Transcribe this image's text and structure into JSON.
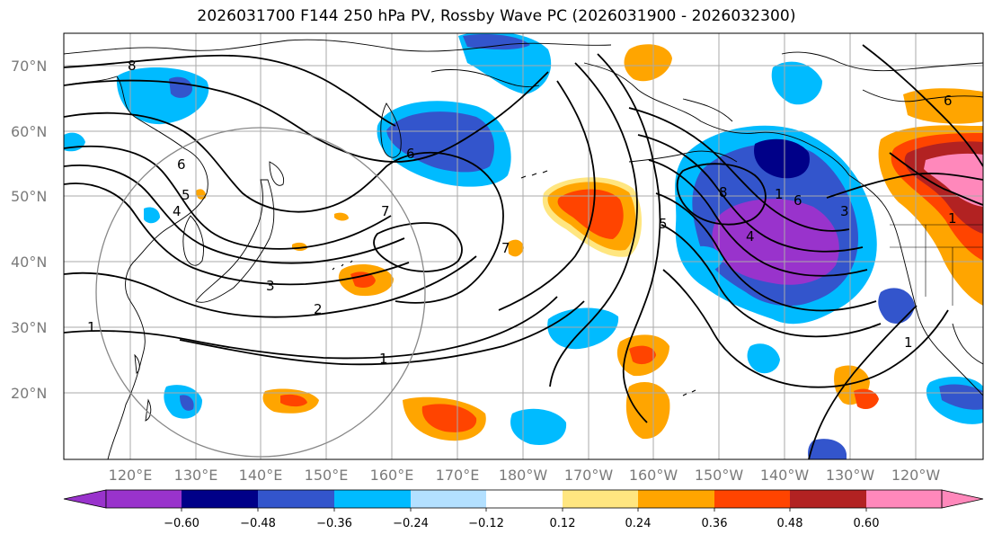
{
  "title": "2026031700 F144 250 hPa PV, Rossby Wave PC (2026031900 - 2026032300)",
  "lat_labels": [
    "70°N",
    "60°N",
    "50°N",
    "40°N",
    "30°N",
    "20°N"
  ],
  "lon_labels": [
    "120°E",
    "130°E",
    "140°E",
    "150°E",
    "160°E",
    "170°E",
    "180°W",
    "170°W",
    "160°W",
    "150°W",
    "140°W",
    "130°W",
    "120°W"
  ],
  "colorbar": {
    "ticks": [
      "−0.60",
      "−0.48",
      "−0.36",
      "−0.24",
      "−0.12",
      "0.12",
      "0.24",
      "0.36",
      "0.48",
      "0.60"
    ],
    "colors": [
      "#9933cc",
      "#000088",
      "#3355cc",
      "#00bbff",
      "#b3e0ff",
      "#ffffff",
      "#ffe680",
      "#ffa500",
      "#ff4400",
      "#b22222",
      "#ff88bb"
    ]
  },
  "contour_labels": [
    "8",
    "6",
    "5",
    "4",
    "3",
    "2",
    "1",
    "1",
    "1",
    "7",
    "7",
    "6",
    "5",
    "8",
    "6",
    "3",
    "4",
    "6",
    "1",
    "1"
  ]
}
